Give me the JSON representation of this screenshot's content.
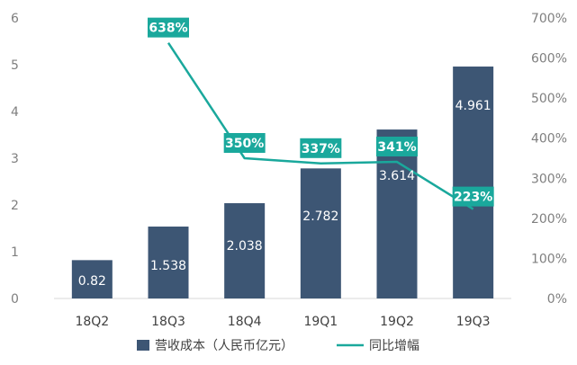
{
  "chart_data": {
    "type": "bar",
    "title": "",
    "categories": [
      "18Q2",
      "18Q3",
      "18Q4",
      "19Q1",
      "19Q2",
      "19Q3"
    ],
    "series": [
      {
        "name": "营收成本（人民币亿元）",
        "type": "bar",
        "axis": "left",
        "values": [
          0.82,
          1.538,
          2.038,
          2.782,
          3.614,
          4.961
        ],
        "labels": [
          "0.82",
          "1.538",
          "2.038",
          "2.782",
          "3.614",
          "4.961"
        ],
        "color": "#3d5674"
      },
      {
        "name": "同比增幅",
        "type": "line",
        "axis": "right",
        "values": [
          null,
          638,
          350,
          337,
          341,
          223
        ],
        "labels": [
          "",
          "638%",
          "350%",
          "337%",
          "341%",
          "223%"
        ],
        "color": "#1aa89c"
      }
    ],
    "y_left": {
      "range": [
        0,
        6
      ],
      "ticks": [
        "0",
        "1",
        "2",
        "3",
        "4",
        "5",
        "6"
      ]
    },
    "y_right": {
      "range": [
        0,
        700
      ],
      "ticks": [
        "0%",
        "100%",
        "200%",
        "300%",
        "400%",
        "500%",
        "600%",
        "700%"
      ]
    },
    "grid": false,
    "legend_position": "bottom"
  }
}
